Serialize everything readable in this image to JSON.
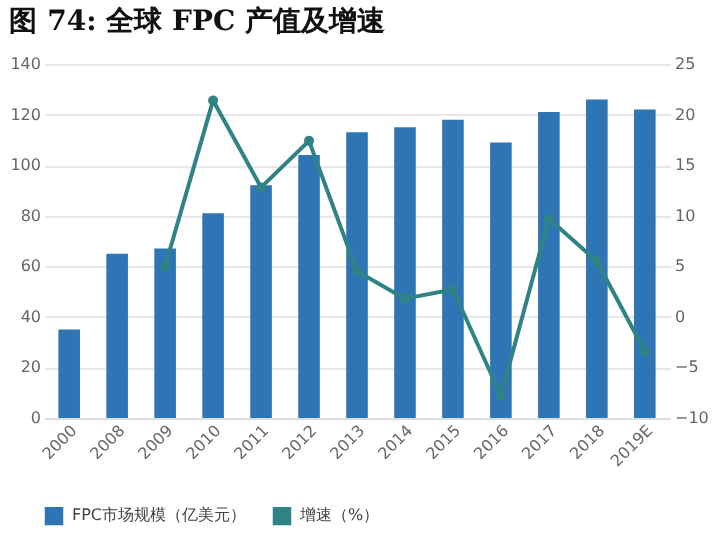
{
  "chart_data": {
    "type": "bar",
    "title": "图 74: 全球 FPC 产值及增速",
    "categories": [
      "2000",
      "2008",
      "2009",
      "2010",
      "2011",
      "2012",
      "2013",
      "2014",
      "2015",
      "2016",
      "2017",
      "2018",
      "2019E"
    ],
    "series": [
      {
        "name": "FPC市场规模（亿美元）",
        "color": "#2e75b6",
        "values": [
          35,
          65,
          67,
          81,
          92,
          104,
          113,
          115,
          118,
          109,
          121,
          126,
          122
        ]
      },
      {
        "name": "增速（%）",
        "type": "line",
        "axis": "y2",
        "color": "#2f8385",
        "marker": "circle",
        "values": [
          null,
          null,
          5,
          21.4,
          12.8,
          17.4,
          4.5,
          1.8,
          2.7,
          -7.8,
          9.7,
          5.5,
          -3.4
        ]
      }
    ],
    "ylim": [
      0,
      140
    ],
    "yticks": [
      0,
      20,
      40,
      60,
      80,
      100,
      120,
      140
    ],
    "y2lim": [
      -10,
      25
    ],
    "y2ticks": [
      -10,
      -5,
      0,
      5,
      10,
      15,
      20,
      25
    ],
    "grid": "y",
    "legend": "bottom"
  }
}
